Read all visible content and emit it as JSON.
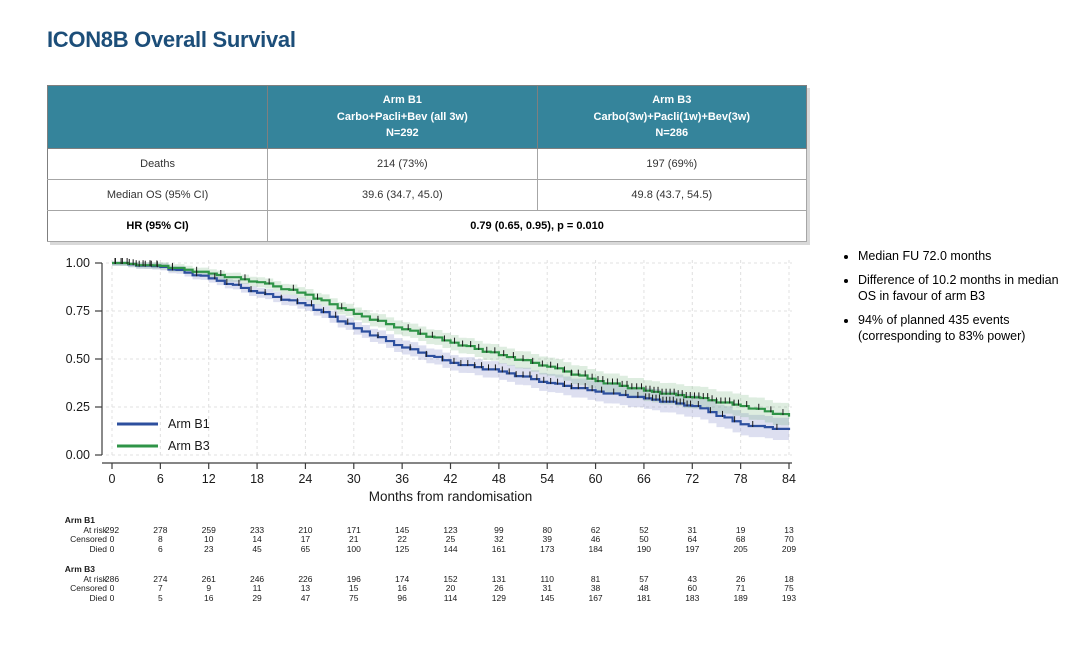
{
  "title": "ICON8B Overall Survival",
  "summary_table": {
    "header": {
      "arm_b1": [
        "Arm B1",
        "Carbo+Pacli+Bev (all 3w)",
        "N=292"
      ],
      "arm_b3": [
        "Arm B3",
        "Carbo(3w)+Pacli(1w)+Bev(3w)",
        "N=286"
      ]
    },
    "rows": [
      {
        "label": "Deaths",
        "b1": "214 (73%)",
        "b3": "197 (69%)"
      },
      {
        "label": "Median OS (95% CI)",
        "b1": "39.6 (34.7, 45.0)",
        "b3": "49.8 (43.7, 54.5)"
      },
      {
        "label": "HR (95% CI)",
        "combined": "0.79 (0.65, 0.95), p = 0.010"
      }
    ]
  },
  "bullets": [
    "Median FU 72.0 months",
    "Difference of 10.2 months in median OS in favour of arm B3",
    "94% of planned 435 events (corresponding to 83% power)"
  ],
  "chart_data": {
    "type": "line",
    "subtype": "kaplan-meier-step",
    "title": "",
    "xlabel": "Months from randomisation",
    "ylabel": "",
    "x_ticks": [
      0,
      6,
      12,
      18,
      24,
      30,
      36,
      42,
      48,
      54,
      60,
      66,
      72,
      78,
      84
    ],
    "y_ticks": [
      0.0,
      0.25,
      0.5,
      0.75,
      1.0
    ],
    "xlim": [
      0,
      84
    ],
    "ylim": [
      0,
      1.0
    ],
    "grid": "dashed-both-axes",
    "legend_position": "inside-bottom-left",
    "series": [
      {
        "name": "Arm B1",
        "color": "#2d4f9e",
        "band_color": "rgba(100,110,185,0.22)",
        "x": [
          0,
          6,
          12,
          18,
          24,
          30,
          36,
          42,
          48,
          54,
          60,
          66,
          72,
          78,
          84
        ],
        "survival": [
          1.0,
          0.98,
          0.92,
          0.845,
          0.78,
          0.66,
          0.56,
          0.48,
          0.435,
          0.375,
          0.33,
          0.295,
          0.255,
          0.16,
          0.13
        ]
      },
      {
        "name": "Arm B3",
        "color": "#2f9447",
        "band_color": "rgba(90,165,100,0.20)",
        "x": [
          0,
          6,
          12,
          18,
          24,
          30,
          36,
          42,
          48,
          54,
          60,
          66,
          72,
          78,
          84
        ],
        "survival": [
          1.0,
          0.985,
          0.945,
          0.9,
          0.835,
          0.735,
          0.655,
          0.585,
          0.52,
          0.46,
          0.385,
          0.335,
          0.3,
          0.255,
          0.2
        ]
      }
    ],
    "at_risk": [
      {
        "name": "Arm B1",
        "rows": [
          {
            "label": "At risk",
            "values": [
              292,
              278,
              259,
              233,
              210,
              171,
              145,
              123,
              99,
              80,
              62,
              52,
              31,
              19,
              13
            ]
          },
          {
            "label": "Censored",
            "values": [
              0,
              8,
              10,
              14,
              17,
              21,
              22,
              25,
              32,
              39,
              46,
              50,
              64,
              68,
              70
            ]
          },
          {
            "label": "Died",
            "values": [
              0,
              6,
              23,
              45,
              65,
              100,
              125,
              144,
              161,
              173,
              184,
              190,
              197,
              205,
              209
            ]
          }
        ]
      },
      {
        "name": "Arm B3",
        "rows": [
          {
            "label": "At risk",
            "values": [
              286,
              274,
              261,
              246,
              226,
              196,
              174,
              152,
              131,
              110,
              81,
              57,
              43,
              26,
              18
            ]
          },
          {
            "label": "Censored",
            "values": [
              0,
              7,
              9,
              11,
              13,
              15,
              16,
              20,
              26,
              31,
              38,
              48,
              60,
              71,
              75
            ]
          },
          {
            "label": "Died",
            "values": [
              0,
              5,
              16,
              29,
              47,
              75,
              96,
              114,
              129,
              145,
              167,
              181,
              183,
              189,
              193
            ]
          }
        ]
      }
    ]
  },
  "colors": {
    "title": "#1c4e79",
    "table_header_bg": "#35849b",
    "table_header_text": "#ffffff",
    "arm_b1_line": "#2d4f9e",
    "arm_b3_line": "#2f9447",
    "gridline": "#e0e0e0",
    "axis": "#3c3c3c"
  }
}
